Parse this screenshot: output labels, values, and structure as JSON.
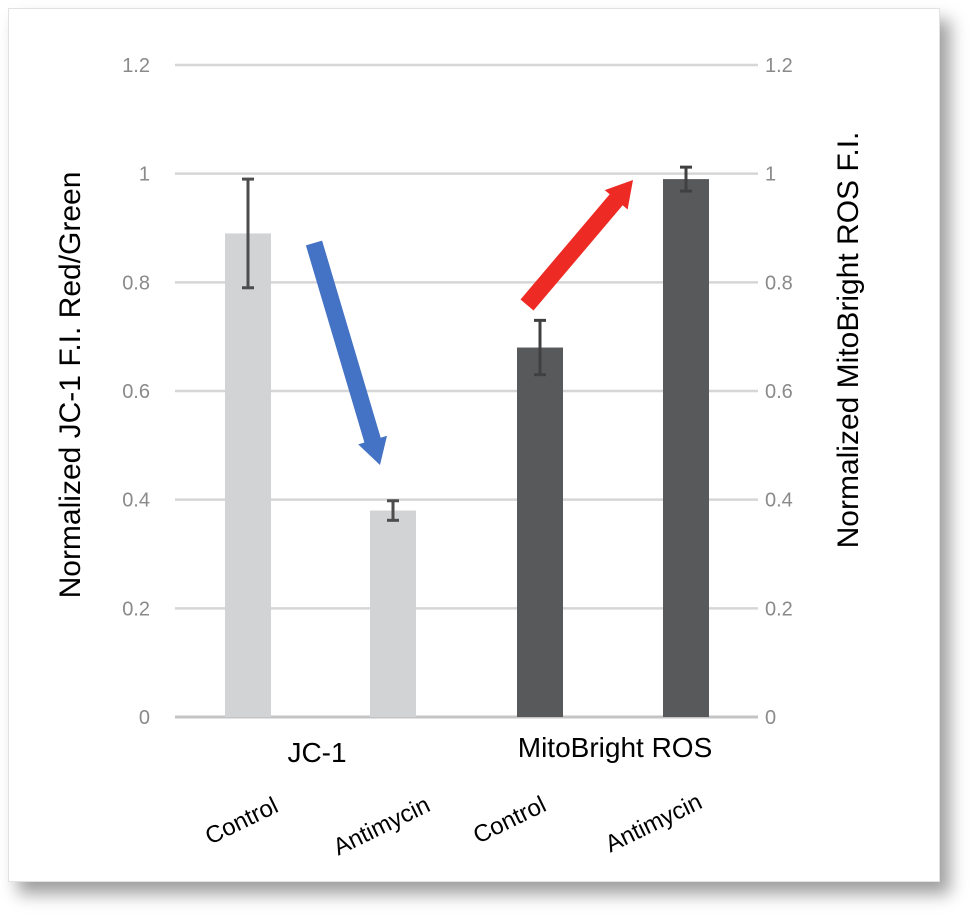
{
  "chart_data": {
    "type": "bar",
    "ylabel_left": "Normalized JC-1 F.I. Red/Green",
    "ylabel_right": "Normalized  MitoBright ROS F.I.",
    "ylim": [
      0,
      1.2
    ],
    "yticks": [
      "0",
      "0.2",
      "0.4",
      "0.6",
      "0.8",
      "1",
      "1.2"
    ],
    "grid": true,
    "groups": [
      {
        "label": "JC-1",
        "color": "#d2d3d5",
        "categories": [
          "Control",
          "Antimycin"
        ],
        "values": [
          0.89,
          0.38
        ],
        "errors": [
          0.1,
          0.018
        ]
      },
      {
        "label": "MitoBright ROS",
        "color": "#58595b",
        "categories": [
          "Control",
          "Antimycin"
        ],
        "values": [
          0.68,
          0.99
        ],
        "errors": [
          0.05,
          0.022
        ]
      }
    ],
    "annotations": [
      {
        "type": "arrow",
        "direction": "down",
        "color": "#4472c4",
        "from": "JC-1 Control",
        "to": "JC-1 Antimycin"
      },
      {
        "type": "arrow",
        "direction": "up",
        "color": "#ee2a24",
        "from": "MitoBright ROS Control",
        "to": "MitoBright ROS Antimycin"
      }
    ]
  }
}
